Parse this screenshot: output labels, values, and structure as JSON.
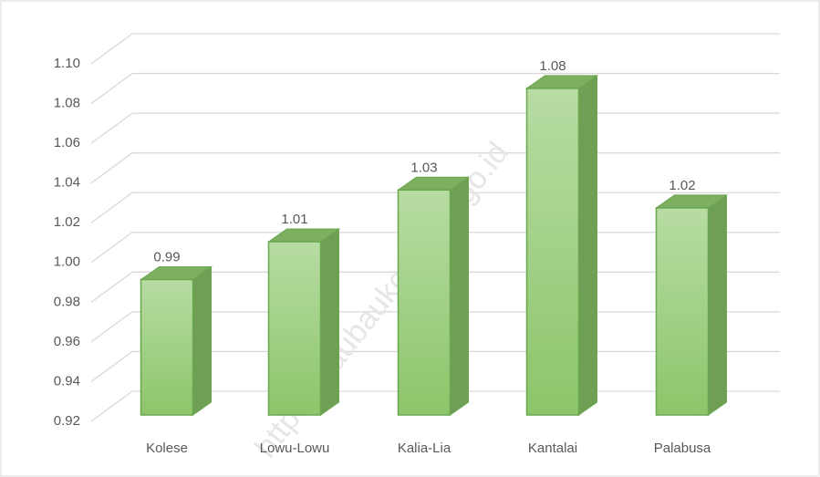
{
  "chart_data": {
    "type": "bar3d",
    "categories": [
      "Kolese",
      "Lowu-Lowu",
      "Kalia-Lia",
      "Kantalai",
      "Palabusa"
    ],
    "values": [
      0.988,
      1.007,
      1.033,
      1.084,
      1.024
    ],
    "value_labels": [
      "0.99",
      "1.01",
      "1.03",
      "1.08",
      "1.02"
    ],
    "color": "#8cc56a",
    "ylim": [
      0.92,
      1.1
    ],
    "yticks": [
      {
        "value": 0.92,
        "label": "0.92"
      },
      {
        "value": 0.94,
        "label": "0.94"
      },
      {
        "value": 0.96,
        "label": "0.96"
      },
      {
        "value": 0.98,
        "label": "0.98"
      },
      {
        "value": 1.0,
        "label": "1.00"
      },
      {
        "value": 1.02,
        "label": "1.02"
      },
      {
        "value": 1.04,
        "label": "1.04"
      },
      {
        "value": 1.06,
        "label": "1.06"
      },
      {
        "value": 1.08,
        "label": "1.08"
      },
      {
        "value": 1.1,
        "label": "1.10"
      }
    ],
    "grid": true,
    "watermark": "https://baubaukota.bps.go.id"
  }
}
